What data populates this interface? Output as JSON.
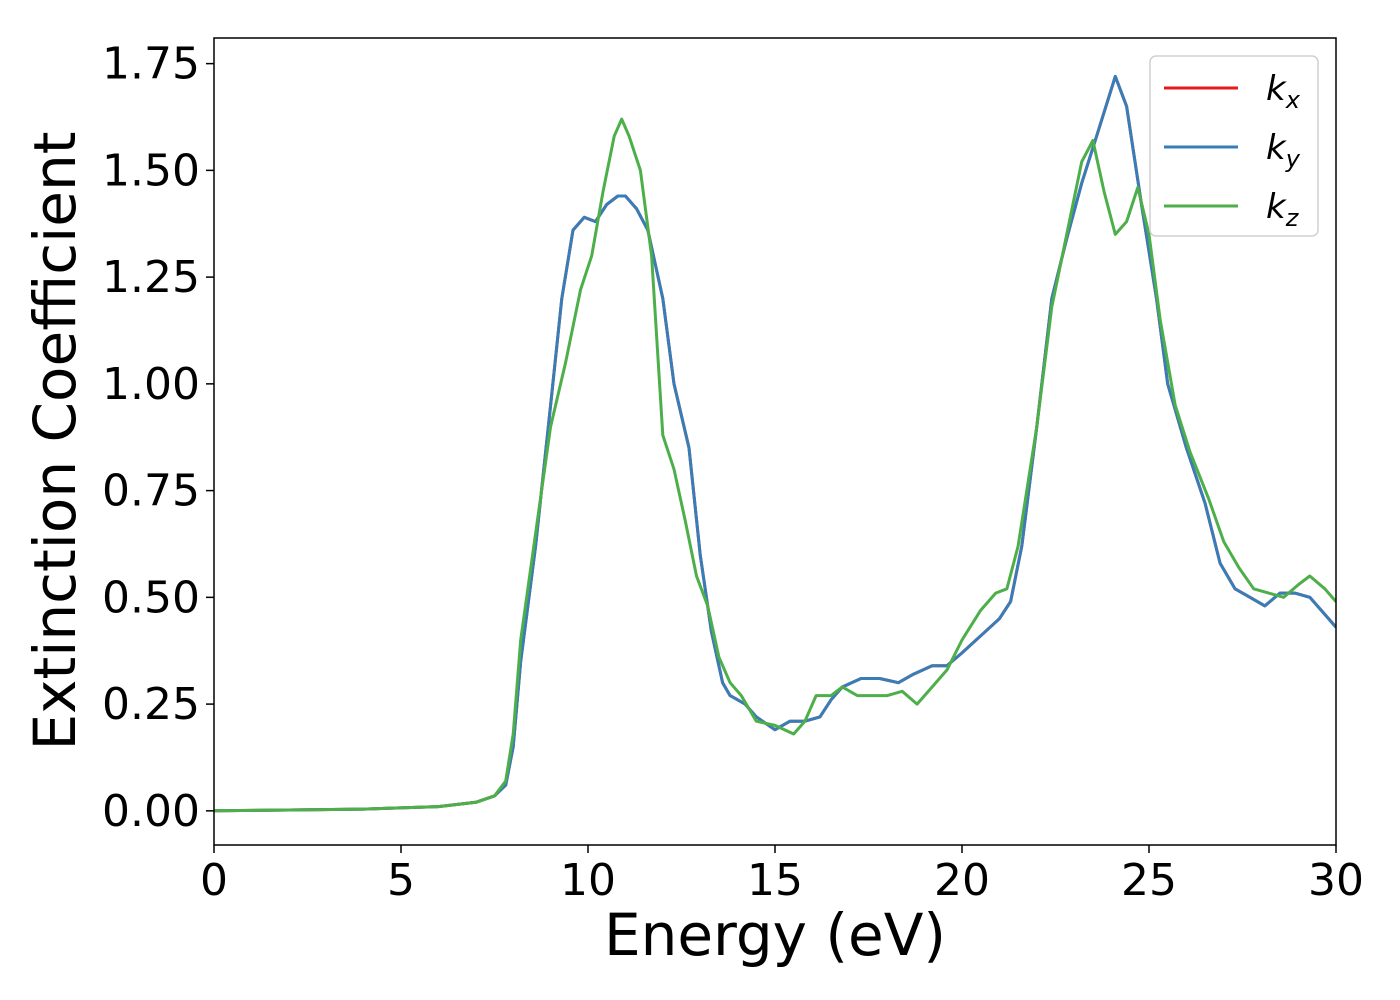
{
  "chart_data": {
    "type": "line",
    "xlabel": "Energy (eV)",
    "ylabel": "Extinction Coefficient",
    "xlim": [
      0,
      30
    ],
    "ylim": [
      -0.08,
      1.81
    ],
    "x_ticks": [
      "0",
      "5",
      "10",
      "15",
      "20",
      "25",
      "30"
    ],
    "y_ticks": [
      "0.00",
      "0.25",
      "0.50",
      "0.75",
      "1.00",
      "1.25",
      "1.50",
      "1.75"
    ],
    "grid": false,
    "legend_position": "top-right",
    "series": [
      {
        "name": "k",
        "subscript": "x",
        "color": "#e41a1c",
        "points": [
          [
            0,
            0
          ],
          [
            2,
            0.002
          ],
          [
            4,
            0.004
          ],
          [
            6,
            0.01
          ],
          [
            7,
            0.02
          ],
          [
            7.5,
            0.035
          ],
          [
            7.8,
            0.06
          ],
          [
            8.0,
            0.15
          ],
          [
            8.2,
            0.35
          ],
          [
            8.6,
            0.62
          ],
          [
            9.0,
            0.95
          ],
          [
            9.3,
            1.2
          ],
          [
            9.6,
            1.36
          ],
          [
            9.9,
            1.39
          ],
          [
            10.2,
            1.38
          ],
          [
            10.5,
            1.42
          ],
          [
            10.8,
            1.44
          ],
          [
            11.0,
            1.44
          ],
          [
            11.3,
            1.41
          ],
          [
            11.6,
            1.36
          ],
          [
            12.0,
            1.2
          ],
          [
            12.3,
            1.0
          ],
          [
            12.7,
            0.85
          ],
          [
            13.0,
            0.6
          ],
          [
            13.3,
            0.42
          ],
          [
            13.6,
            0.3
          ],
          [
            13.8,
            0.27
          ],
          [
            14.2,
            0.25
          ],
          [
            14.5,
            0.22
          ],
          [
            15.0,
            0.19
          ],
          [
            15.4,
            0.21
          ],
          [
            15.8,
            0.21
          ],
          [
            16.2,
            0.22
          ],
          [
            16.5,
            0.26
          ],
          [
            16.8,
            0.29
          ],
          [
            17.3,
            0.31
          ],
          [
            17.8,
            0.31
          ],
          [
            18.3,
            0.3
          ],
          [
            18.7,
            0.32
          ],
          [
            19.2,
            0.34
          ],
          [
            19.6,
            0.34
          ],
          [
            20.0,
            0.37
          ],
          [
            20.5,
            0.41
          ],
          [
            21.0,
            0.45
          ],
          [
            21.3,
            0.49
          ],
          [
            21.6,
            0.62
          ],
          [
            22.0,
            0.9
          ],
          [
            22.4,
            1.2
          ],
          [
            22.8,
            1.34
          ],
          [
            23.2,
            1.47
          ],
          [
            23.6,
            1.58
          ],
          [
            24.1,
            1.72
          ],
          [
            24.4,
            1.65
          ],
          [
            24.8,
            1.42
          ],
          [
            25.2,
            1.2
          ],
          [
            25.5,
            1.0
          ],
          [
            26.0,
            0.85
          ],
          [
            26.5,
            0.72
          ],
          [
            26.9,
            0.58
          ],
          [
            27.3,
            0.52
          ],
          [
            27.7,
            0.5
          ],
          [
            28.1,
            0.48
          ],
          [
            28.5,
            0.51
          ],
          [
            28.9,
            0.51
          ],
          [
            29.3,
            0.5
          ],
          [
            29.7,
            0.46
          ],
          [
            30.0,
            0.43
          ]
        ]
      },
      {
        "name": "k",
        "subscript": "y",
        "color": "#377eb8",
        "points": [
          [
            0,
            0
          ],
          [
            2,
            0.002
          ],
          [
            4,
            0.004
          ],
          [
            6,
            0.01
          ],
          [
            7,
            0.02
          ],
          [
            7.5,
            0.035
          ],
          [
            7.8,
            0.06
          ],
          [
            8.0,
            0.15
          ],
          [
            8.2,
            0.35
          ],
          [
            8.6,
            0.62
          ],
          [
            9.0,
            0.95
          ],
          [
            9.3,
            1.2
          ],
          [
            9.6,
            1.36
          ],
          [
            9.9,
            1.39
          ],
          [
            10.2,
            1.38
          ],
          [
            10.5,
            1.42
          ],
          [
            10.8,
            1.44
          ],
          [
            11.0,
            1.44
          ],
          [
            11.3,
            1.41
          ],
          [
            11.6,
            1.36
          ],
          [
            12.0,
            1.2
          ],
          [
            12.3,
            1.0
          ],
          [
            12.7,
            0.85
          ],
          [
            13.0,
            0.6
          ],
          [
            13.3,
            0.42
          ],
          [
            13.6,
            0.3
          ],
          [
            13.8,
            0.27
          ],
          [
            14.2,
            0.25
          ],
          [
            14.5,
            0.22
          ],
          [
            15.0,
            0.19
          ],
          [
            15.4,
            0.21
          ],
          [
            15.8,
            0.21
          ],
          [
            16.2,
            0.22
          ],
          [
            16.5,
            0.26
          ],
          [
            16.8,
            0.29
          ],
          [
            17.3,
            0.31
          ],
          [
            17.8,
            0.31
          ],
          [
            18.3,
            0.3
          ],
          [
            18.7,
            0.32
          ],
          [
            19.2,
            0.34
          ],
          [
            19.6,
            0.34
          ],
          [
            20.0,
            0.37
          ],
          [
            20.5,
            0.41
          ],
          [
            21.0,
            0.45
          ],
          [
            21.3,
            0.49
          ],
          [
            21.6,
            0.62
          ],
          [
            22.0,
            0.9
          ],
          [
            22.4,
            1.2
          ],
          [
            22.8,
            1.34
          ],
          [
            23.2,
            1.47
          ],
          [
            23.6,
            1.58
          ],
          [
            24.1,
            1.72
          ],
          [
            24.4,
            1.65
          ],
          [
            24.8,
            1.42
          ],
          [
            25.2,
            1.2
          ],
          [
            25.5,
            1.0
          ],
          [
            26.0,
            0.85
          ],
          [
            26.5,
            0.72
          ],
          [
            26.9,
            0.58
          ],
          [
            27.3,
            0.52
          ],
          [
            27.7,
            0.5
          ],
          [
            28.1,
            0.48
          ],
          [
            28.5,
            0.51
          ],
          [
            28.9,
            0.51
          ],
          [
            29.3,
            0.5
          ],
          [
            29.7,
            0.46
          ],
          [
            30.0,
            0.43
          ]
        ]
      },
      {
        "name": "k",
        "subscript": "z",
        "color": "#4daf4a",
        "points": [
          [
            0,
            0
          ],
          [
            2,
            0.002
          ],
          [
            4,
            0.004
          ],
          [
            6,
            0.01
          ],
          [
            7,
            0.02
          ],
          [
            7.5,
            0.035
          ],
          [
            7.8,
            0.07
          ],
          [
            8.0,
            0.18
          ],
          [
            8.2,
            0.4
          ],
          [
            8.6,
            0.65
          ],
          [
            9.0,
            0.9
          ],
          [
            9.4,
            1.05
          ],
          [
            9.8,
            1.22
          ],
          [
            10.1,
            1.3
          ],
          [
            10.4,
            1.45
          ],
          [
            10.7,
            1.58
          ],
          [
            10.9,
            1.62
          ],
          [
            11.1,
            1.58
          ],
          [
            11.4,
            1.5
          ],
          [
            11.7,
            1.3
          ],
          [
            12.0,
            0.88
          ],
          [
            12.3,
            0.8
          ],
          [
            12.6,
            0.68
          ],
          [
            12.9,
            0.55
          ],
          [
            13.2,
            0.48
          ],
          [
            13.5,
            0.36
          ],
          [
            13.8,
            0.3
          ],
          [
            14.1,
            0.27
          ],
          [
            14.5,
            0.21
          ],
          [
            15.0,
            0.2
          ],
          [
            15.5,
            0.18
          ],
          [
            15.8,
            0.21
          ],
          [
            16.1,
            0.27
          ],
          [
            16.5,
            0.27
          ],
          [
            16.8,
            0.29
          ],
          [
            17.2,
            0.27
          ],
          [
            17.5,
            0.27
          ],
          [
            18.0,
            0.27
          ],
          [
            18.4,
            0.28
          ],
          [
            18.8,
            0.25
          ],
          [
            19.2,
            0.29
          ],
          [
            19.6,
            0.33
          ],
          [
            20.0,
            0.4
          ],
          [
            20.5,
            0.47
          ],
          [
            20.9,
            0.51
          ],
          [
            21.2,
            0.52
          ],
          [
            21.5,
            0.62
          ],
          [
            22.0,
            0.9
          ],
          [
            22.4,
            1.18
          ],
          [
            22.8,
            1.35
          ],
          [
            23.2,
            1.52
          ],
          [
            23.5,
            1.57
          ],
          [
            23.8,
            1.45
          ],
          [
            24.1,
            1.35
          ],
          [
            24.4,
            1.38
          ],
          [
            24.7,
            1.46
          ],
          [
            25.0,
            1.35
          ],
          [
            25.3,
            1.15
          ],
          [
            25.7,
            0.95
          ],
          [
            26.1,
            0.84
          ],
          [
            26.6,
            0.73
          ],
          [
            27.0,
            0.63
          ],
          [
            27.4,
            0.57
          ],
          [
            27.8,
            0.52
          ],
          [
            28.2,
            0.51
          ],
          [
            28.6,
            0.5
          ],
          [
            29.0,
            0.53
          ],
          [
            29.3,
            0.55
          ],
          [
            29.7,
            0.52
          ],
          [
            30.0,
            0.49
          ]
        ]
      }
    ]
  }
}
